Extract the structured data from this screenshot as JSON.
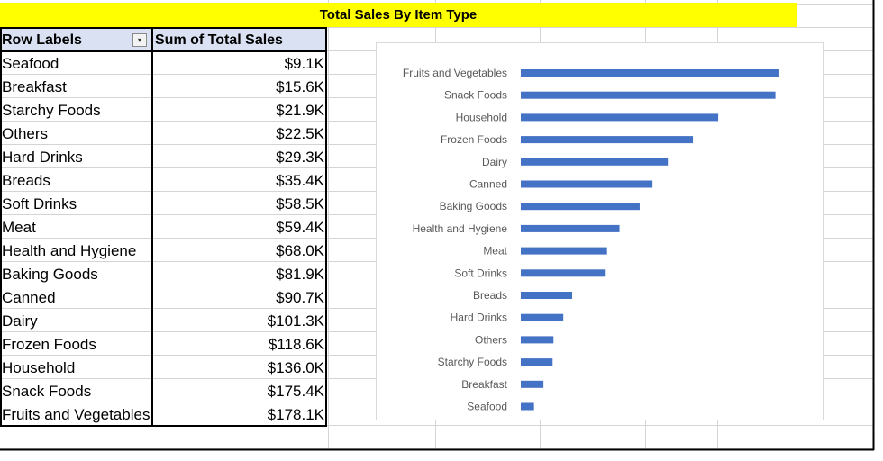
{
  "title": "Total Sales By Item Type",
  "pivot": {
    "header_labels": "Row Labels",
    "header_values": "Sum of Total Sales",
    "filter_icon": "sort-filter-icon",
    "rows": [
      {
        "label": "Seafood",
        "value": "$9.1K"
      },
      {
        "label": "Breakfast",
        "value": "$15.6K"
      },
      {
        "label": "Starchy Foods",
        "value": "$21.9K"
      },
      {
        "label": "Others",
        "value": "$22.5K"
      },
      {
        "label": "Hard Drinks",
        "value": "$29.3K"
      },
      {
        "label": "Breads",
        "value": "$35.4K"
      },
      {
        "label": "Soft Drinks",
        "value": "$58.5K"
      },
      {
        "label": "Meat",
        "value": "$59.4K"
      },
      {
        "label": "Health and Hygiene",
        "value": "$68.0K"
      },
      {
        "label": "Baking Goods",
        "value": "$81.9K"
      },
      {
        "label": "Canned",
        "value": "$90.7K"
      },
      {
        "label": "Dairy",
        "value": "$101.3K"
      },
      {
        "label": "Frozen Foods",
        "value": "$118.6K"
      },
      {
        "label": "Household",
        "value": "$136.0K"
      },
      {
        "label": "Snack Foods",
        "value": "$175.4K"
      },
      {
        "label": "Fruits and Vegetables",
        "value": "$178.1K"
      }
    ]
  },
  "chart_data": {
    "type": "bar",
    "orientation": "horizontal",
    "title": "",
    "xlabel": "",
    "ylabel": "",
    "categories": [
      "Fruits and Vegetables",
      "Snack Foods",
      "Household",
      "Frozen Foods",
      "Dairy",
      "Canned",
      "Baking Goods",
      "Health and Hygiene",
      "Meat",
      "Soft Drinks",
      "Breads",
      "Hard Drinks",
      "Others",
      "Starchy Foods",
      "Breakfast",
      "Seafood"
    ],
    "values": [
      178.1,
      175.4,
      136.0,
      118.6,
      101.3,
      90.7,
      81.9,
      68.0,
      59.4,
      58.5,
      35.4,
      29.3,
      22.5,
      21.9,
      15.6,
      9.1
    ],
    "xlim": [
      0,
      180
    ],
    "grid": false,
    "legend": "none",
    "bar_color": "#4472c4"
  }
}
